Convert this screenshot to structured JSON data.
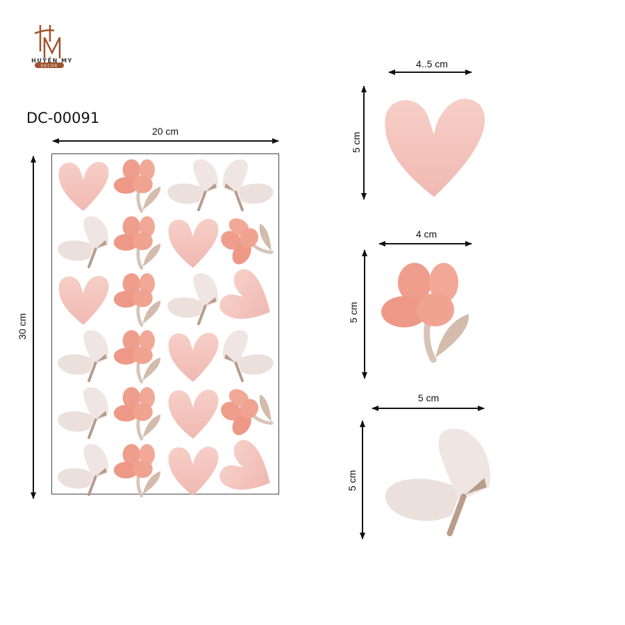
{
  "brand": {
    "name": "HUYỀN MY",
    "tagline": "DECOR",
    "monogram": "HM",
    "color": "#a0522d"
  },
  "product_code": "DC-00091",
  "sheet": {
    "width_label": "20 cm",
    "height_label": "30 cm",
    "items": [
      "heart",
      "flower",
      "butterfly",
      "butterfly-flipped",
      "butterfly",
      "flower",
      "heart",
      "flower-rotated",
      "heart",
      "flower",
      "butterfly",
      "heart-rotated",
      "butterfly",
      "flower",
      "heart",
      "butterfly-flipped",
      "butterfly",
      "flower",
      "heart",
      "flower-rotated",
      "butterfly",
      "flower",
      "heart",
      "heart-rotated"
    ]
  },
  "details": [
    {
      "shape": "heart",
      "width_label": "4..5 cm",
      "height_label": "5 cm"
    },
    {
      "shape": "flower",
      "width_label": "4 cm",
      "height_label": "5 cm"
    },
    {
      "shape": "butterfly",
      "width_label": "5 cm",
      "height_label": "5 cm"
    }
  ],
  "colors": {
    "heart": "#f3c3bb",
    "flower": "#ef9d8c",
    "stem": "#d8c4b6",
    "wing": "#ede2de",
    "body": "#b89c8c",
    "arrow": "#111111"
  }
}
